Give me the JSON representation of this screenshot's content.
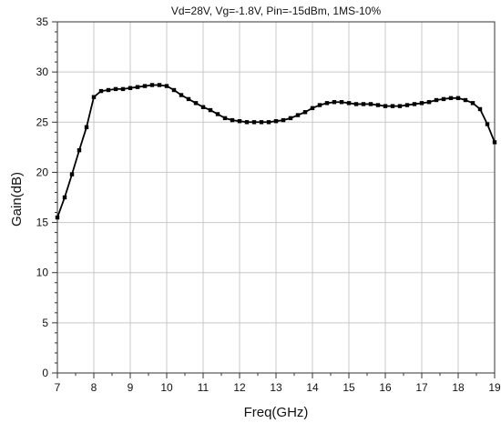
{
  "chart_data": {
    "type": "line",
    "title": "Vd=28V, Vg=-1.8V, Pin=-15dBm, 1MS-10%",
    "xlabel": "Freq(GHz)",
    "ylabel": "Gain(dB)",
    "xlim": [
      7,
      19
    ],
    "ylim": [
      0,
      35
    ],
    "xticks": [
      "7",
      "8",
      "9",
      "10",
      "11",
      "12",
      "13",
      "14",
      "15",
      "16",
      "17",
      "18",
      "19"
    ],
    "yticks": [
      "0",
      "5",
      "10",
      "15",
      "20",
      "25",
      "30",
      "35"
    ],
    "grid": true,
    "marker": "square",
    "colors": {
      "line": "#000000",
      "grid": "#c8c8c8",
      "axis": "#333333"
    },
    "series": [
      {
        "x": [
          7.0,
          7.2,
          7.4,
          7.6,
          7.8,
          8.0,
          8.2,
          8.4,
          8.6,
          8.8,
          9.0,
          9.2,
          9.4,
          9.6,
          9.8,
          10.0,
          10.2,
          10.4,
          10.6,
          10.8,
          11.0,
          11.2,
          11.4,
          11.6,
          11.8,
          12.0,
          12.2,
          12.4,
          12.6,
          12.8,
          13.0,
          13.2,
          13.4,
          13.6,
          13.8,
          14.0,
          14.2,
          14.4,
          14.6,
          14.8,
          15.0,
          15.2,
          15.4,
          15.6,
          15.8,
          16.0,
          16.2,
          16.4,
          16.6,
          16.8,
          17.0,
          17.2,
          17.4,
          17.6,
          17.8,
          18.0,
          18.2,
          18.4,
          18.6,
          18.8,
          19.0
        ],
        "values": [
          15.5,
          17.5,
          19.8,
          22.2,
          24.5,
          27.5,
          28.1,
          28.2,
          28.3,
          28.3,
          28.4,
          28.5,
          28.6,
          28.7,
          28.7,
          28.6,
          28.2,
          27.7,
          27.3,
          26.9,
          26.5,
          26.2,
          25.8,
          25.4,
          25.2,
          25.1,
          25.0,
          25.0,
          25.0,
          25.0,
          25.1,
          25.2,
          25.4,
          25.7,
          26.0,
          26.4,
          26.7,
          26.9,
          27.0,
          27.0,
          26.9,
          26.8,
          26.8,
          26.8,
          26.7,
          26.6,
          26.6,
          26.6,
          26.7,
          26.8,
          26.9,
          27.0,
          27.2,
          27.3,
          27.4,
          27.4,
          27.2,
          26.9,
          26.3,
          24.8,
          23.0
        ]
      }
    ]
  }
}
